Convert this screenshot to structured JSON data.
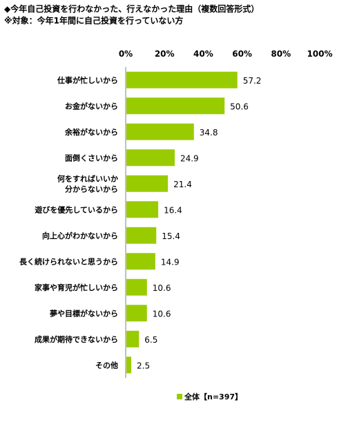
{
  "header": {
    "title": "◆今年自己投資を行わなかった、行えなかった理由（複数回答形式）",
    "subtitle": "※対象：今年1年間に自己投資を行っていない方"
  },
  "legend": {
    "label": "全体【n=397】"
  },
  "chart_data": {
    "type": "bar",
    "orientation": "horizontal",
    "title": "◆今年自己投資を行わなかった、行えなかった理由（複数回答形式）",
    "subtitle": "※対象：今年1年間に自己投資を行っていない方",
    "categories": [
      [
        "仕事が忙しいから"
      ],
      [
        "お金がないから"
      ],
      [
        "余裕がないから"
      ],
      [
        "面倒くさいから"
      ],
      [
        "何をすればいいか",
        "分からないから"
      ],
      [
        "遊びを優先しているから"
      ],
      [
        "向上心がわかないから"
      ],
      [
        "長く続けられないと思うから"
      ],
      [
        "家事や育児が忙しいから"
      ],
      [
        "夢や目標がないから"
      ],
      [
        "成果が期待できないから"
      ],
      [
        "その他"
      ]
    ],
    "series": [
      {
        "name": "全体【n=397】",
        "values": [
          57.2,
          50.6,
          34.8,
          24.9,
          21.4,
          16.4,
          15.4,
          14.9,
          10.6,
          10.6,
          6.5,
          2.5
        ],
        "labels": [
          "57.2",
          "50.6",
          "34.8",
          "24.9",
          "21.4",
          "16.4",
          "15.4",
          "14.9",
          "10.6",
          "10.6",
          "6.5",
          "2.5"
        ]
      }
    ],
    "xticks": [
      "0%",
      "20%",
      "40%",
      "60%",
      "80%",
      "100%"
    ],
    "xlim": [
      0,
      100
    ],
    "grid": false,
    "legend_position": "bottom",
    "bar_color": "#99cc00"
  }
}
